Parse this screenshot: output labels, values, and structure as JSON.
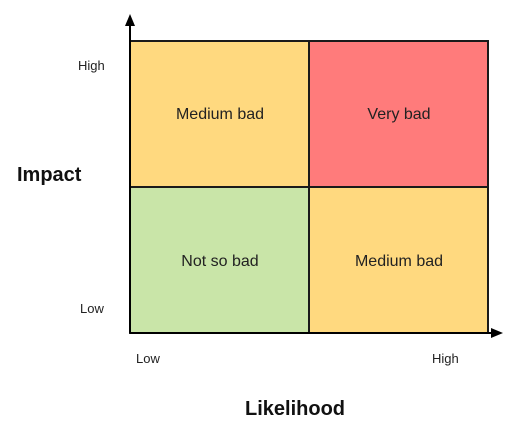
{
  "axes": {
    "y_title": "Impact",
    "x_title": "Likelihood",
    "y_high": "High",
    "y_low": "Low",
    "x_low": "Low",
    "x_high": "High"
  },
  "quadrants": [
    {
      "id": "top-left",
      "label": "Medium bad",
      "color": "#ffd97f"
    },
    {
      "id": "top-right",
      "label": "Very bad",
      "color": "#ff7b7b"
    },
    {
      "id": "bottom-left",
      "label": "Not so bad",
      "color": "#c9e5a8"
    },
    {
      "id": "bottom-right",
      "label": "Medium bad",
      "color": "#ffd97f"
    }
  ],
  "colors": {
    "border": "#1a1a1a",
    "axis": "#000000"
  }
}
